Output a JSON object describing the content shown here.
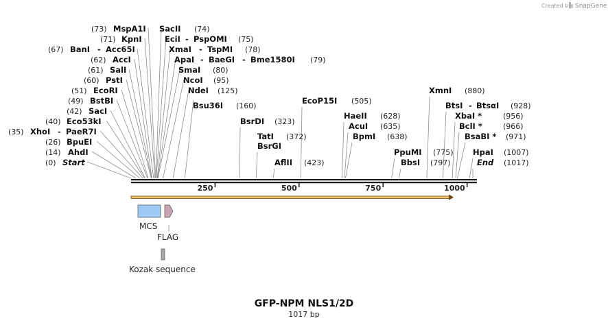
{
  "credit": {
    "prefix": "Created by",
    "brand": "SnapGene"
  },
  "map": {
    "name": "GFP-NPM NLS1/2D",
    "length_label": "1017 bp",
    "length_bp": 1017,
    "ticks": [
      {
        "value": 250,
        "label": "250"
      },
      {
        "value": 500,
        "label": "500"
      },
      {
        "value": 750,
        "label": "750"
      },
      {
        "value": 1000,
        "label": "1000"
      }
    ]
  },
  "colors": {
    "backbone": "#1a1a1a",
    "orf_fill": "#f3c56b",
    "orf_stroke": "#6b4c1a",
    "mcs": "#9dc9f2",
    "flag": "#c9a3b4",
    "kozak": "#a6a6a6"
  },
  "sites": [
    {
      "label": "Start",
      "pos": "(0)",
      "bp": 0,
      "italic": true
    },
    {
      "label": "AhdI",
      "pos": "(14)",
      "bp": 14
    },
    {
      "label": "BpuEI",
      "pos": "(26)",
      "bp": 26
    },
    {
      "label": "XhoI",
      "label2": "PaeR7I",
      "pos": "(35)",
      "bp": 35
    },
    {
      "label": "Eco53kI",
      "pos": "(40)",
      "bp": 40
    },
    {
      "label": "SacI",
      "pos": "(42)",
      "bp": 42
    },
    {
      "label": "BstBI",
      "pos": "(49)",
      "bp": 49
    },
    {
      "label": "EcoRI",
      "pos": "(51)",
      "bp": 51
    },
    {
      "label": "PstI",
      "pos": "(60)",
      "bp": 60
    },
    {
      "label": "SalI",
      "pos": "(61)",
      "bp": 61
    },
    {
      "label": "AccI",
      "pos": "(62)",
      "bp": 62
    },
    {
      "label": "BanI",
      "label2": "Acc65I",
      "pos": "(67)",
      "bp": 67
    },
    {
      "label": "KpnI",
      "pos": "(71)",
      "bp": 71
    },
    {
      "label": "MspA1I",
      "pos": "(73)",
      "bp": 73
    },
    {
      "label": "SacII",
      "pos": "(74)",
      "bp": 74
    },
    {
      "label": "EciI",
      "label2": "PspOMI",
      "pos": "(75)",
      "bp": 75
    },
    {
      "label": "XmaI",
      "label2": "TspMI",
      "pos": "(78)",
      "bp": 78
    },
    {
      "label": "ApaI",
      "label2": "BaeGI",
      "label3": "Bme1580I",
      "pos": "(79)",
      "bp": 79
    },
    {
      "label": "SmaI",
      "pos": "(80)",
      "bp": 80
    },
    {
      "label": "NcoI",
      "pos": "(95)",
      "bp": 95
    },
    {
      "label": "NdeI",
      "pos": "(125)",
      "bp": 125
    },
    {
      "label": "Bsu36I",
      "pos": "(160)",
      "bp": 160
    },
    {
      "label": "BsrDI",
      "pos": "(323)",
      "bp": 323
    },
    {
      "label": "TatI",
      "label2": "BsrGI",
      "pos": "(372)",
      "bp": 372
    },
    {
      "label": "AflII",
      "pos": "(423)",
      "bp": 423
    },
    {
      "label": "EcoP15I",
      "pos": "(505)",
      "bp": 505
    },
    {
      "label": "HaeII",
      "pos": "(628)",
      "bp": 628
    },
    {
      "label": "AcuI",
      "pos": "(635)",
      "bp": 635
    },
    {
      "label": "BpmI",
      "pos": "(638)",
      "bp": 638
    },
    {
      "label": "PpuMI",
      "pos": "(775)",
      "bp": 775
    },
    {
      "label": "BbsI",
      "pos": "(797)",
      "bp": 797
    },
    {
      "label": "XmnI",
      "pos": "(880)",
      "bp": 880
    },
    {
      "label": "BtsI",
      "label2": "BtsαI",
      "pos": "(928)",
      "bp": 928
    },
    {
      "label": "XbaI *",
      "pos": "(956)",
      "bp": 956
    },
    {
      "label": "BclI *",
      "pos": "(966)",
      "bp": 966
    },
    {
      "label": "BsaBI *",
      "pos": "(971)",
      "bp": 971
    },
    {
      "label": "HpaI",
      "pos": "(1007)",
      "bp": 1007
    },
    {
      "label": "End",
      "pos": "(1017)",
      "bp": 1017,
      "italic": true
    }
  ],
  "features": [
    {
      "id": "orf",
      "name": "",
      "start": 0,
      "end": 960
    },
    {
      "id": "mcs",
      "name": "MCS",
      "start": 20,
      "end": 88
    },
    {
      "id": "flag",
      "name": "FLAG",
      "start": 98,
      "end": 122
    },
    {
      "id": "kozak",
      "name": "Kozak sequence",
      "start": 90,
      "end": 100
    }
  ]
}
